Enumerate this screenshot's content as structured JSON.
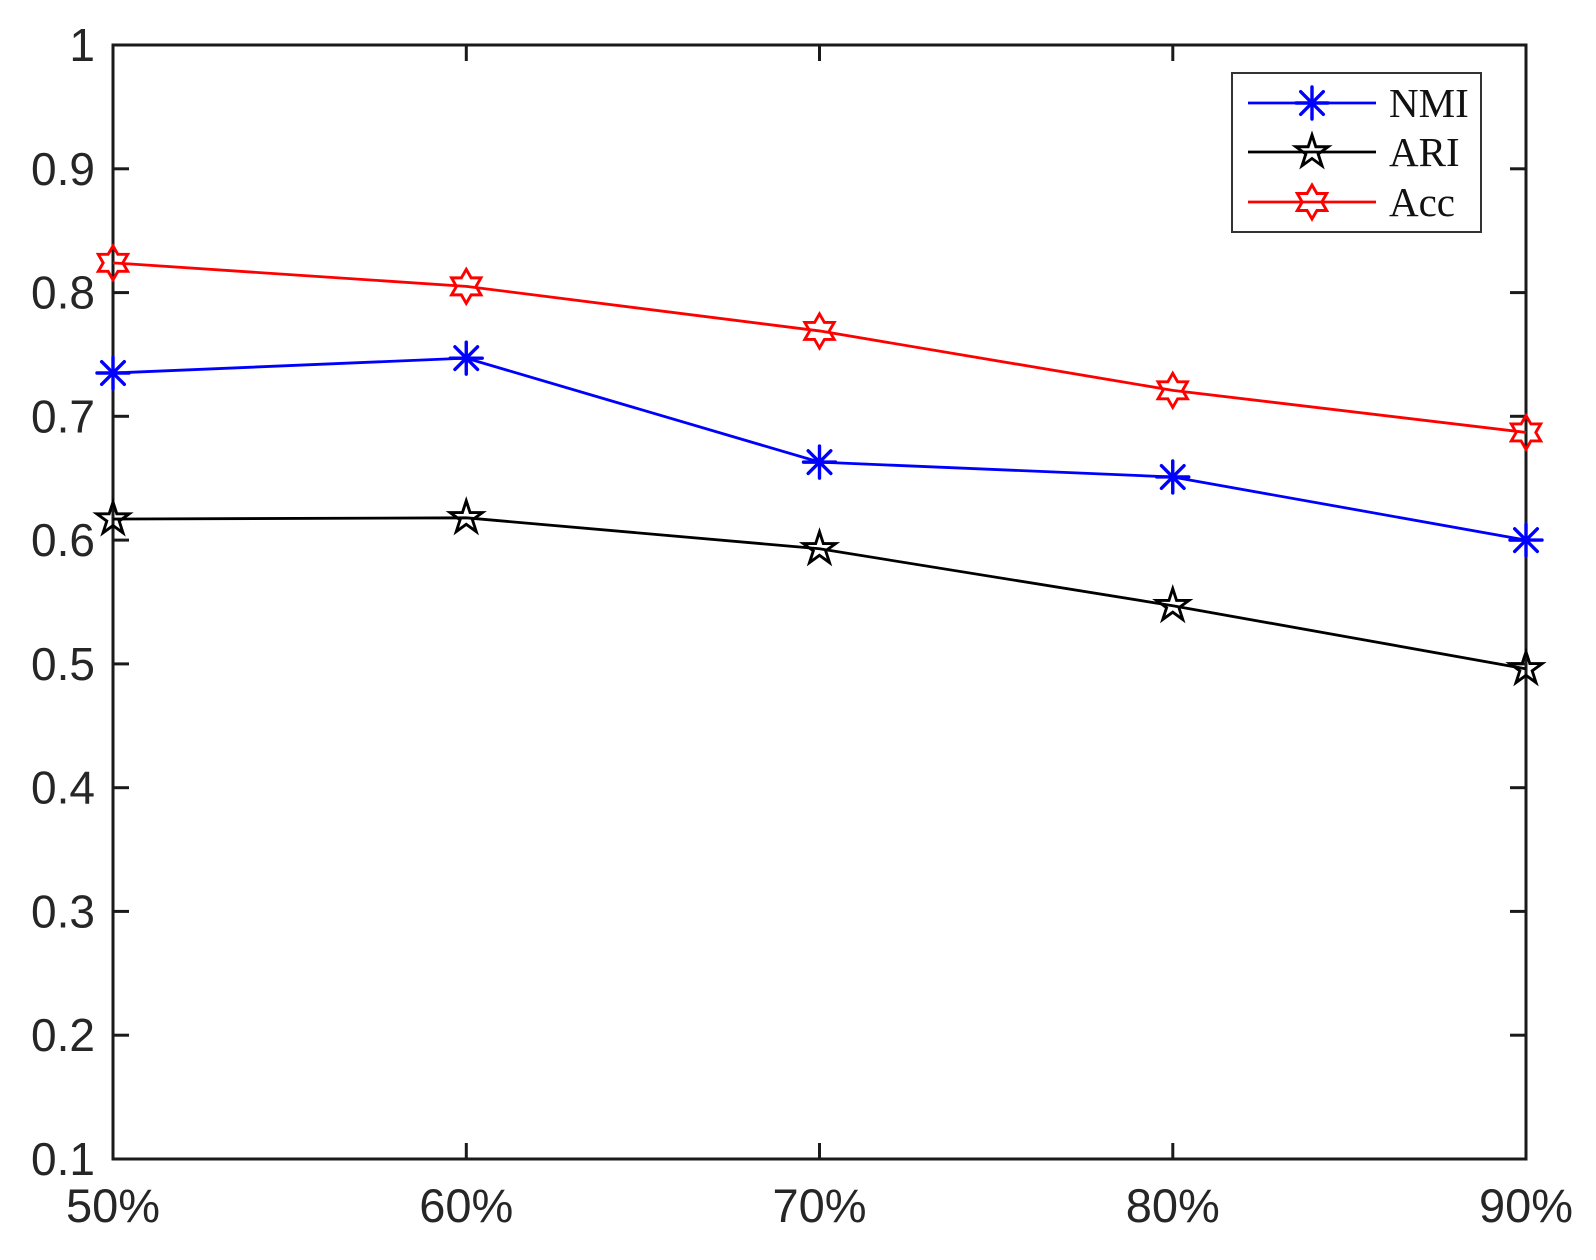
{
  "chart_data": {
    "type": "line",
    "title": "",
    "xlabel": "",
    "ylabel": "",
    "categories": [
      "50%",
      "60%",
      "70%",
      "80%",
      "90%"
    ],
    "series": [
      {
        "name": "NMI",
        "color": "#0000ff",
        "marker": "asterisk",
        "values": [
          0.735,
          0.747,
          0.663,
          0.651,
          0.6
        ]
      },
      {
        "name": "ARI",
        "color": "#000000",
        "marker": "pentagram",
        "values": [
          0.617,
          0.618,
          0.593,
          0.547,
          0.496
        ]
      },
      {
        "name": "Acc",
        "color": "#ff0000",
        "marker": "hexagram",
        "values": [
          0.824,
          0.805,
          0.769,
          0.721,
          0.687
        ]
      }
    ],
    "ylim": [
      0.1,
      1
    ],
    "yticks": [
      0.1,
      0.2,
      0.3,
      0.4,
      0.5,
      0.6,
      0.7,
      0.8,
      0.9,
      1
    ],
    "ytick_labels": [
      "0.1",
      "0.2",
      "0.3",
      "0.4",
      "0.5",
      "0.6",
      "0.7",
      "0.8",
      "0.9",
      "1"
    ],
    "xtick_labels": [
      "50%",
      "60%",
      "70%",
      "80%",
      "90%"
    ],
    "grid": false,
    "legend": {
      "position": "northeast",
      "entries": [
        "NMI",
        "ARI",
        "Acc"
      ]
    },
    "colors": {
      "axis": "#1a1a1a",
      "tick_label": "#262626",
      "background": "#ffffff"
    }
  }
}
